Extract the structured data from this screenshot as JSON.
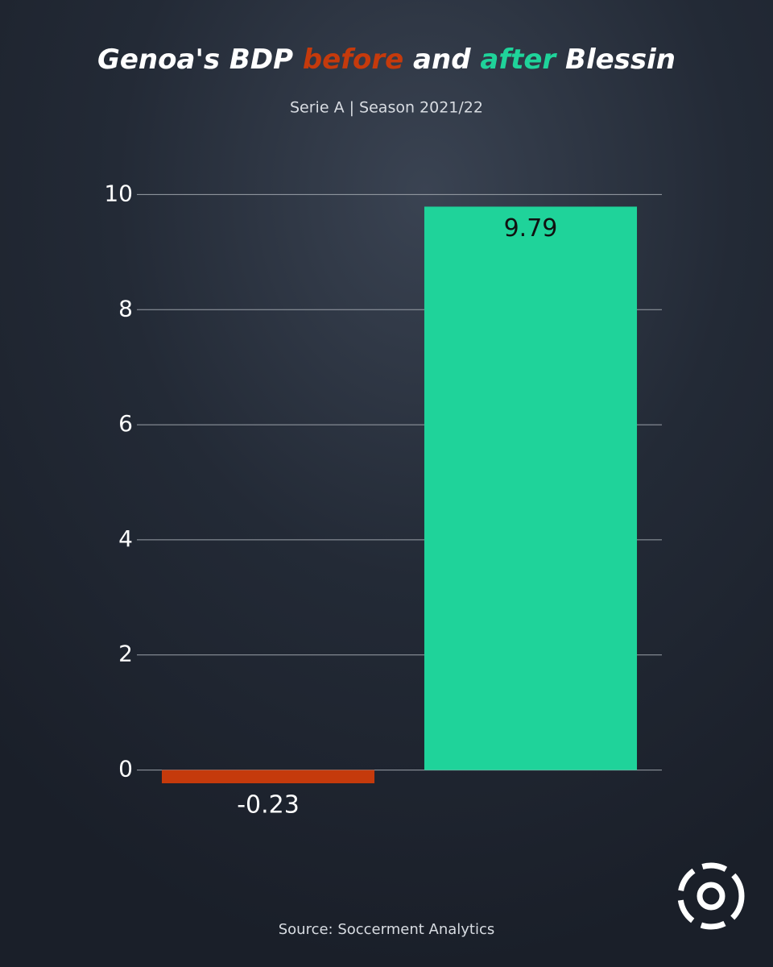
{
  "chart_data": {
    "type": "bar",
    "title_segments": [
      {
        "text": "Genoa's BDP "
      },
      {
        "text": "before",
        "color": "#c53a0c"
      },
      {
        "text": " and "
      },
      {
        "text": "after",
        "color": "#1fd39a"
      },
      {
        "text": " Blessin"
      }
    ],
    "subtitle": "Serie A | Season 2021/22",
    "categories": [
      null,
      null
    ],
    "values": [
      -0.23,
      9.79
    ],
    "colors": [
      "#c53a0c",
      "#1fd39a"
    ],
    "ylim": [
      -0.3,
      10.3
    ],
    "yticks": [
      0,
      2,
      4,
      6,
      8,
      10
    ],
    "grid": true,
    "source": "Source: Soccerment Analytics"
  }
}
